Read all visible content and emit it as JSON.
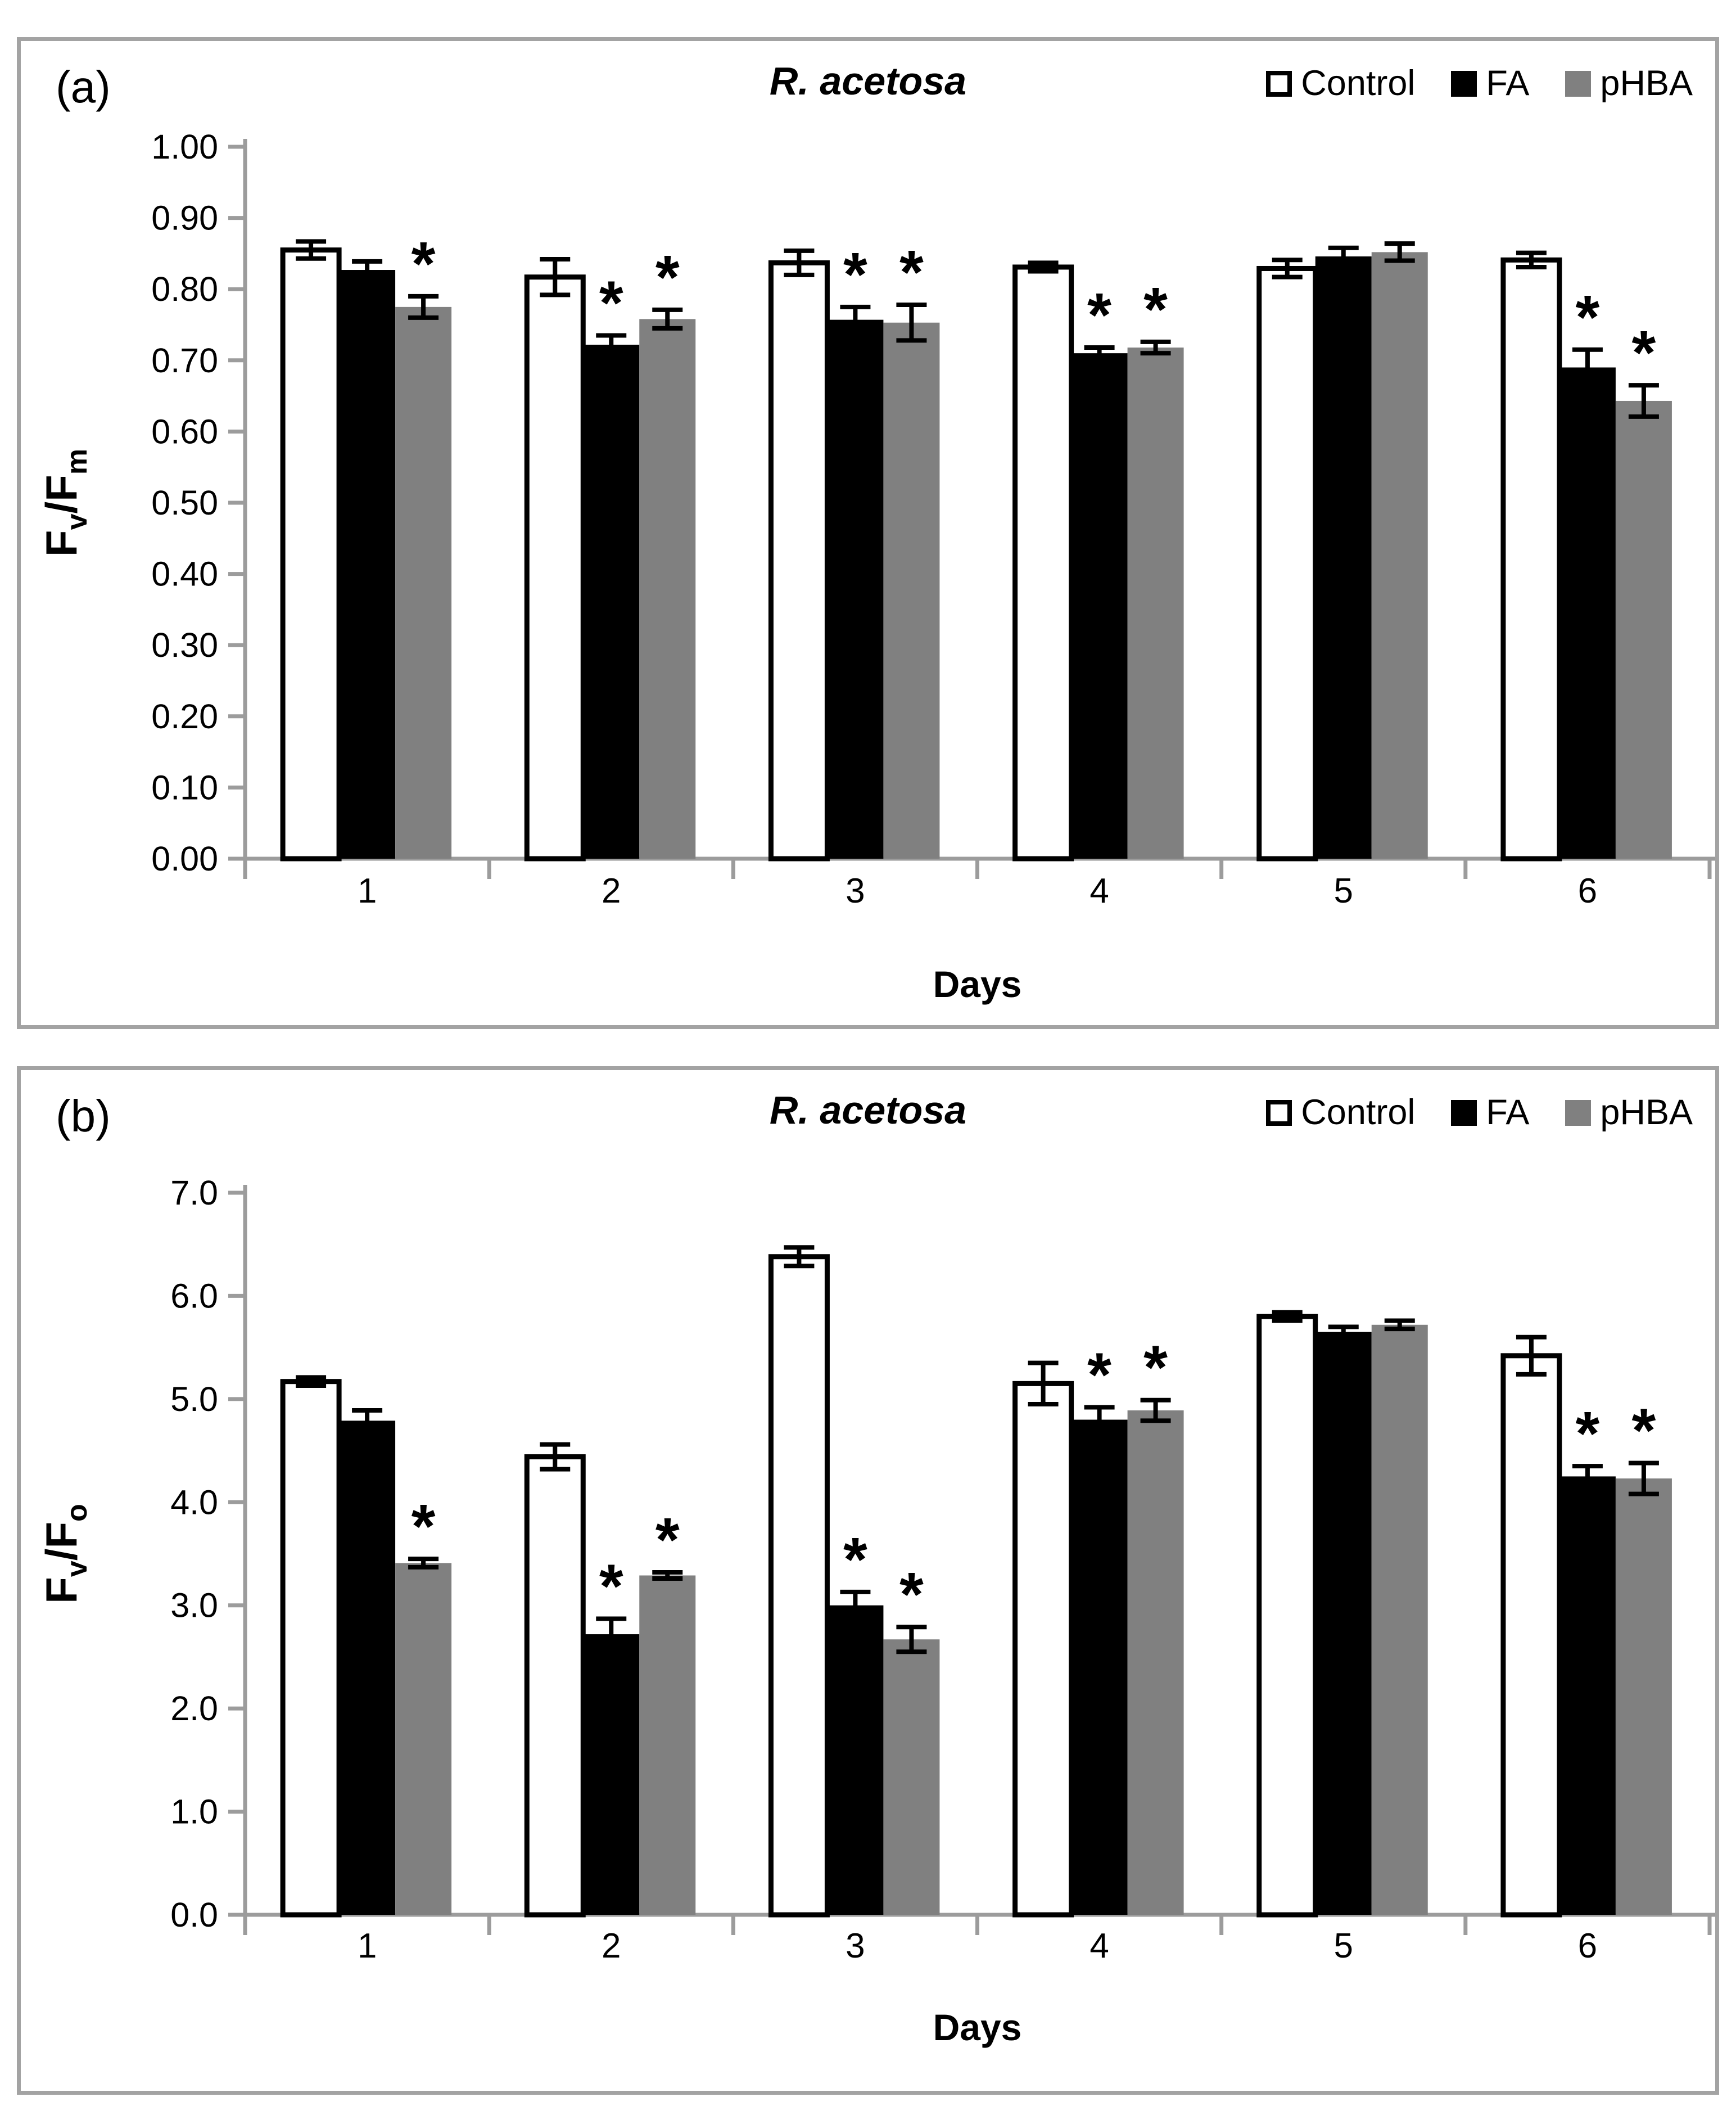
{
  "legend": {
    "items": [
      {
        "label": "Control",
        "fill": "#ffffff",
        "border": "#000000"
      },
      {
        "label": "FA",
        "fill": "#000000",
        "border": "#000000"
      },
      {
        "label": "pHBA",
        "fill": "#808080",
        "border": "#808080"
      }
    ]
  },
  "panels": [
    {
      "letter": "(a)",
      "title": "R. acetosa",
      "xlabel": "Days",
      "ylabel": "Fv/Fm"
    },
    {
      "letter": "(b)",
      "title": "R. acetosa",
      "xlabel": "Days",
      "ylabel": "Fv/Fo"
    }
  ],
  "colors": {
    "axis": "#9c9c9c",
    "panel_border": "#a3a3a3",
    "error_bar": "#000000",
    "control_fill": "#ffffff",
    "control_stroke": "#000000",
    "fa_fill": "#000000",
    "phba_fill": "#808080"
  },
  "sig_marker": "*",
  "chart_data": [
    {
      "type": "bar",
      "panel": "a",
      "title": "R. acetosa",
      "xlabel": "Days",
      "ylabel": "Fv/Fm",
      "ylabel_rich": [
        {
          "t": "F"
        },
        {
          "t": "v",
          "sub": true
        },
        {
          "t": "/F"
        },
        {
          "t": "m",
          "sub": true
        }
      ],
      "categories": [
        "1",
        "2",
        "3",
        "4",
        "5",
        "6"
      ],
      "ylim": [
        0,
        1.0
      ],
      "ytick_step": 0.1,
      "ytick_decimals": 2,
      "grid": false,
      "legend_position": "top-right",
      "series": [
        {
          "name": "Control",
          "fill": "#ffffff",
          "stroke": "#000000",
          "values": [
            0.855,
            0.817,
            0.837,
            0.831,
            0.829,
            0.841
          ],
          "errors": [
            0.012,
            0.025,
            0.017,
            0.006,
            0.012,
            0.01
          ],
          "sig": [
            false,
            false,
            false,
            false,
            false,
            false
          ]
        },
        {
          "name": "FA",
          "fill": "#000000",
          "values": [
            0.827,
            0.722,
            0.757,
            0.71,
            0.846,
            0.69
          ],
          "errors": [
            0.012,
            0.013,
            0.018,
            0.008,
            0.012,
            0.025
          ],
          "sig": [
            false,
            true,
            true,
            true,
            false,
            true
          ]
        },
        {
          "name": "pHBA",
          "fill": "#808080",
          "values": [
            0.775,
            0.758,
            0.753,
            0.718,
            0.852,
            0.643
          ],
          "errors": [
            0.015,
            0.013,
            0.025,
            0.008,
            0.012,
            0.022
          ],
          "sig": [
            true,
            true,
            true,
            true,
            false,
            true
          ]
        }
      ]
    },
    {
      "type": "bar",
      "panel": "b",
      "title": "R. acetosa",
      "xlabel": "Days",
      "ylabel": "Fv/Fo",
      "ylabel_rich": [
        {
          "t": "F"
        },
        {
          "t": "v",
          "sub": true
        },
        {
          "t": "/F"
        },
        {
          "t": "o",
          "sub": true
        }
      ],
      "categories": [
        "1",
        "2",
        "3",
        "4",
        "5",
        "6"
      ],
      "ylim": [
        0,
        7.0
      ],
      "ytick_step": 1.0,
      "ytick_decimals": 1,
      "grid": false,
      "legend_position": "top-right",
      "series": [
        {
          "name": "Control",
          "fill": "#ffffff",
          "stroke": "#000000",
          "values": [
            5.17,
            4.44,
            6.38,
            5.15,
            5.8,
            5.42
          ],
          "errors": [
            0.04,
            0.12,
            0.09,
            0.2,
            0.04,
            0.18
          ],
          "sig": [
            false,
            false,
            false,
            false,
            false,
            false
          ]
        },
        {
          "name": "FA",
          "fill": "#000000",
          "values": [
            4.79,
            2.72,
            3.0,
            4.8,
            5.65,
            4.25
          ],
          "errors": [
            0.1,
            0.15,
            0.13,
            0.12,
            0.05,
            0.1
          ],
          "sig": [
            false,
            true,
            true,
            true,
            false,
            true
          ]
        },
        {
          "name": "pHBA",
          "fill": "#808080",
          "values": [
            3.41,
            3.29,
            2.67,
            4.89,
            5.72,
            4.23
          ],
          "errors": [
            0.04,
            0.03,
            0.12,
            0.1,
            0.04,
            0.15
          ],
          "sig": [
            true,
            true,
            true,
            true,
            false,
            true
          ]
        }
      ]
    }
  ]
}
